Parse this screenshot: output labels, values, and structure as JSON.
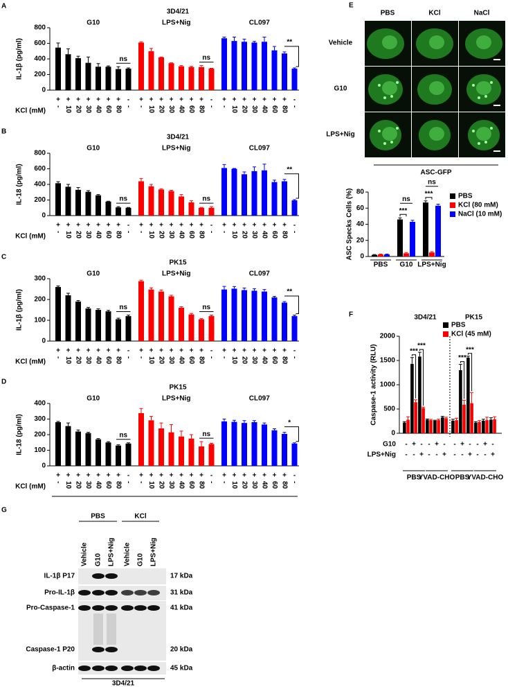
{
  "chart_data": [
    {
      "type": "bar_groups",
      "panel": "A",
      "title": "3D4/21",
      "y_label": "IL-1β (pg/ml)",
      "ylim": [
        0,
        800
      ],
      "yticks": [
        0,
        200,
        400,
        600,
        800
      ],
      "stimulus_row": [
        "+",
        "+",
        "+",
        "+",
        "+",
        "+",
        "+",
        "-"
      ],
      "x_label": "KCl (mM)",
      "kcl_row": [
        "-",
        "10",
        "20",
        "30",
        "40",
        "60",
        "80",
        "-"
      ],
      "groups": [
        {
          "name": "G10",
          "color": "#000000",
          "values": [
            545,
            460,
            410,
            350,
            300,
            300,
            270,
            275
          ],
          "errors": [
            60,
            70,
            25,
            75,
            40,
            10,
            30,
            10
          ],
          "annotation": "ns"
        },
        {
          "name": "LPS+Nig",
          "color": "#ff0000",
          "values": [
            610,
            500,
            420,
            345,
            305,
            295,
            295,
            275
          ],
          "errors": [
            10,
            35,
            5,
            5,
            10,
            10,
            20,
            5
          ],
          "annotation": "ns"
        },
        {
          "name": "CL097",
          "color": "#0000ff",
          "values": [
            665,
            630,
            620,
            610,
            620,
            510,
            470,
            275
          ],
          "errors": [
            15,
            50,
            35,
            15,
            60,
            50,
            20,
            10
          ],
          "annotation": "**"
        }
      ]
    },
    {
      "type": "bar_groups",
      "panel": "B",
      "title": "3D4/21",
      "y_label": "IL-18 (pg/ml)",
      "ylim": [
        0,
        800
      ],
      "yticks": [
        0,
        200,
        400,
        600,
        800
      ],
      "stimulus_row": [
        "+",
        "+",
        "+",
        "+",
        "+",
        "+",
        "+",
        "-"
      ],
      "x_label": "KCl (mM)",
      "kcl_row": [
        "-",
        "10",
        "20",
        "30",
        "40",
        "60",
        "80",
        "-"
      ],
      "groups": [
        {
          "name": "G10",
          "color": "#000000",
          "values": [
            415,
            370,
            330,
            305,
            260,
            180,
            105,
            100
          ],
          "errors": [
            20,
            30,
            30,
            15,
            10,
            5,
            10,
            5
          ],
          "annotation": "ns"
        },
        {
          "name": "LPS+Nig",
          "color": "#ff0000",
          "values": [
            440,
            375,
            335,
            315,
            245,
            170,
            100,
            100
          ],
          "errors": [
            35,
            25,
            10,
            10,
            25,
            20,
            5,
            15
          ],
          "annotation": "ns"
        },
        {
          "name": "CL097",
          "color": "#0000ff",
          "values": [
            610,
            600,
            530,
            570,
            580,
            430,
            440,
            195
          ],
          "errors": [
            45,
            5,
            30,
            55,
            80,
            25,
            25,
            10
          ],
          "annotation": "**"
        }
      ]
    },
    {
      "type": "bar_groups",
      "panel": "C",
      "title": "PK15",
      "y_label": "IL-1β (pg/ml)",
      "ylim": [
        0,
        300
      ],
      "yticks": [
        0,
        100,
        200,
        300
      ],
      "stimulus_row": [
        "+",
        "+",
        "+",
        "+",
        "+",
        "+",
        "+",
        "-"
      ],
      "x_label": "KCl (mM)",
      "kcl_row": [
        "-",
        "10",
        "20",
        "30",
        "40",
        "60",
        "80",
        "-"
      ],
      "groups": [
        {
          "name": "G10",
          "color": "#000000",
          "values": [
            260,
            220,
            190,
            157,
            150,
            143,
            105,
            120
          ],
          "errors": [
            5,
            10,
            5,
            5,
            5,
            5,
            5,
            5
          ],
          "annotation": "ns"
        },
        {
          "name": "LPS+Nig",
          "color": "#ff0000",
          "values": [
            288,
            248,
            238,
            215,
            160,
            128,
            105,
            120
          ],
          "errors": [
            5,
            8,
            8,
            5,
            5,
            5,
            3,
            5
          ],
          "annotation": "ns"
        },
        {
          "name": "CL097",
          "color": "#0000ff",
          "values": [
            248,
            252,
            245,
            242,
            238,
            210,
            185,
            120
          ],
          "errors": [
            15,
            10,
            10,
            10,
            10,
            5,
            5,
            5
          ],
          "annotation": "**"
        }
      ]
    },
    {
      "type": "bar_groups",
      "panel": "D",
      "title": "PK15",
      "y_label": "IL-18 (pg/ml)",
      "ylim": [
        0,
        400
      ],
      "yticks": [
        0,
        100,
        200,
        300,
        400
      ],
      "stimulus_row": [
        "+",
        "+",
        "+",
        "+",
        "+",
        "+",
        "+",
        "-"
      ],
      "x_label": "KCl (mM)",
      "kcl_row": [
        "-",
        "10",
        "20",
        "30",
        "40",
        "60",
        "80",
        "-"
      ],
      "groups": [
        {
          "name": "G10",
          "color": "#000000",
          "values": [
            280,
            255,
            220,
            210,
            170,
            150,
            130,
            143
          ],
          "errors": [
            5,
            20,
            10,
            5,
            5,
            5,
            5,
            5
          ],
          "annotation": "ns"
        },
        {
          "name": "LPS+Nig",
          "color": "#ff0000",
          "values": [
            338,
            292,
            240,
            215,
            188,
            175,
            125,
            140
          ],
          "errors": [
            30,
            25,
            35,
            50,
            35,
            25,
            30,
            5
          ],
          "annotation": "ns"
        },
        {
          "name": "CL097",
          "color": "#0000ff",
          "values": [
            285,
            282,
            275,
            280,
            265,
            228,
            205,
            143
          ],
          "errors": [
            15,
            10,
            15,
            10,
            10,
            10,
            10,
            5
          ],
          "annotation": "*"
        }
      ]
    },
    {
      "type": "grouped_bar",
      "y_label": "ASC Specks Cells (%)",
      "ylim": [
        0,
        80
      ],
      "yticks": [
        0,
        20,
        40,
        60,
        80
      ],
      "categories": [
        "PBS",
        "G10",
        "LPS+Nig"
      ],
      "series": [
        {
          "name": "PBS",
          "color": "#000000",
          "values": [
            2,
            46,
            67
          ],
          "errors": [
            0.5,
            2,
            2
          ]
        },
        {
          "name": "KCl (80 mM)",
          "color": "#ff0000",
          "values": [
            2.5,
            4,
            5
          ],
          "errors": [
            0.5,
            1,
            1
          ]
        },
        {
          "name": "NaCl (10 mM)",
          "color": "#0000ff",
          "values": [
            2.5,
            43,
            63
          ],
          "errors": [
            0.5,
            2,
            2
          ]
        }
      ],
      "annotations": [
        [],
        [
          "ns",
          "***"
        ],
        [
          "ns",
          "***"
        ]
      ]
    },
    {
      "type": "grouped_bar_rows",
      "panel": "F",
      "y_label": "Caspase-1 activity (RLU)",
      "ylim": [
        0,
        2000
      ],
      "yticks": [
        0,
        500,
        1000,
        1500,
        2000
      ],
      "cell_lines": [
        "3D4/21",
        "PK15"
      ],
      "treatment_groups": [
        "PBS",
        "YVAD-CHO",
        "PBS",
        "YVAD-CHO"
      ],
      "rows": [
        {
          "name": "G10",
          "values": [
            "-",
            "+",
            "-",
            "-",
            "+",
            "-",
            "-",
            "+",
            "-",
            "-",
            "+",
            "-"
          ]
        },
        {
          "name": "LPS+Nig",
          "values": [
            "-",
            "-",
            "+",
            "-",
            "-",
            "+",
            "-",
            "-",
            "+",
            "-",
            "-",
            "+"
          ]
        }
      ],
      "series": [
        {
          "name": "PBS",
          "color": "#000000",
          "values": [
            220,
            1430,
            1580,
            280,
            260,
            330,
            260,
            1300,
            1560,
            220,
            260,
            280
          ],
          "errors": [
            20,
            130,
            90,
            15,
            10,
            20,
            30,
            120,
            30,
            20,
            30,
            40
          ]
        },
        {
          "name": "KCl (45 mM)",
          "color": "#ff0000",
          "values": [
            280,
            640,
            520,
            270,
            270,
            310,
            270,
            590,
            620,
            230,
            270,
            290
          ],
          "errors": [
            60,
            50,
            20,
            15,
            20,
            20,
            40,
            90,
            220,
            30,
            60,
            50
          ]
        }
      ],
      "annotations": [
        null,
        "***",
        "***",
        null,
        null,
        null,
        null,
        "***",
        "***",
        null,
        null,
        null
      ]
    }
  ],
  "microscopy": {
    "panel": "E",
    "columns": [
      "PBS",
      "KCl",
      "NaCl"
    ],
    "rows": [
      "Vehicle",
      "G10",
      "LPS+Nig"
    ],
    "caption": "ASC-GFP"
  },
  "western_blot": {
    "panel": "G",
    "groups": [
      "PBS",
      "KCl"
    ],
    "lanes": [
      "Vehicle",
      "G10",
      "LPS+Nig",
      "Vehicle",
      "G10",
      "LPS+Nig"
    ],
    "rows": [
      {
        "name": "IL-1β P17",
        "size": "17 kDa"
      },
      {
        "name": "Pro-IL-1β",
        "size": "31 kDa"
      },
      {
        "name": "Pro-Caspase-1",
        "size": "41 kDa"
      },
      {
        "name": "Caspase-1 P20",
        "size": "20 kDa"
      },
      {
        "name": "β-actin",
        "size": "45 kDa"
      }
    ],
    "cell_line": "3D4/21"
  }
}
